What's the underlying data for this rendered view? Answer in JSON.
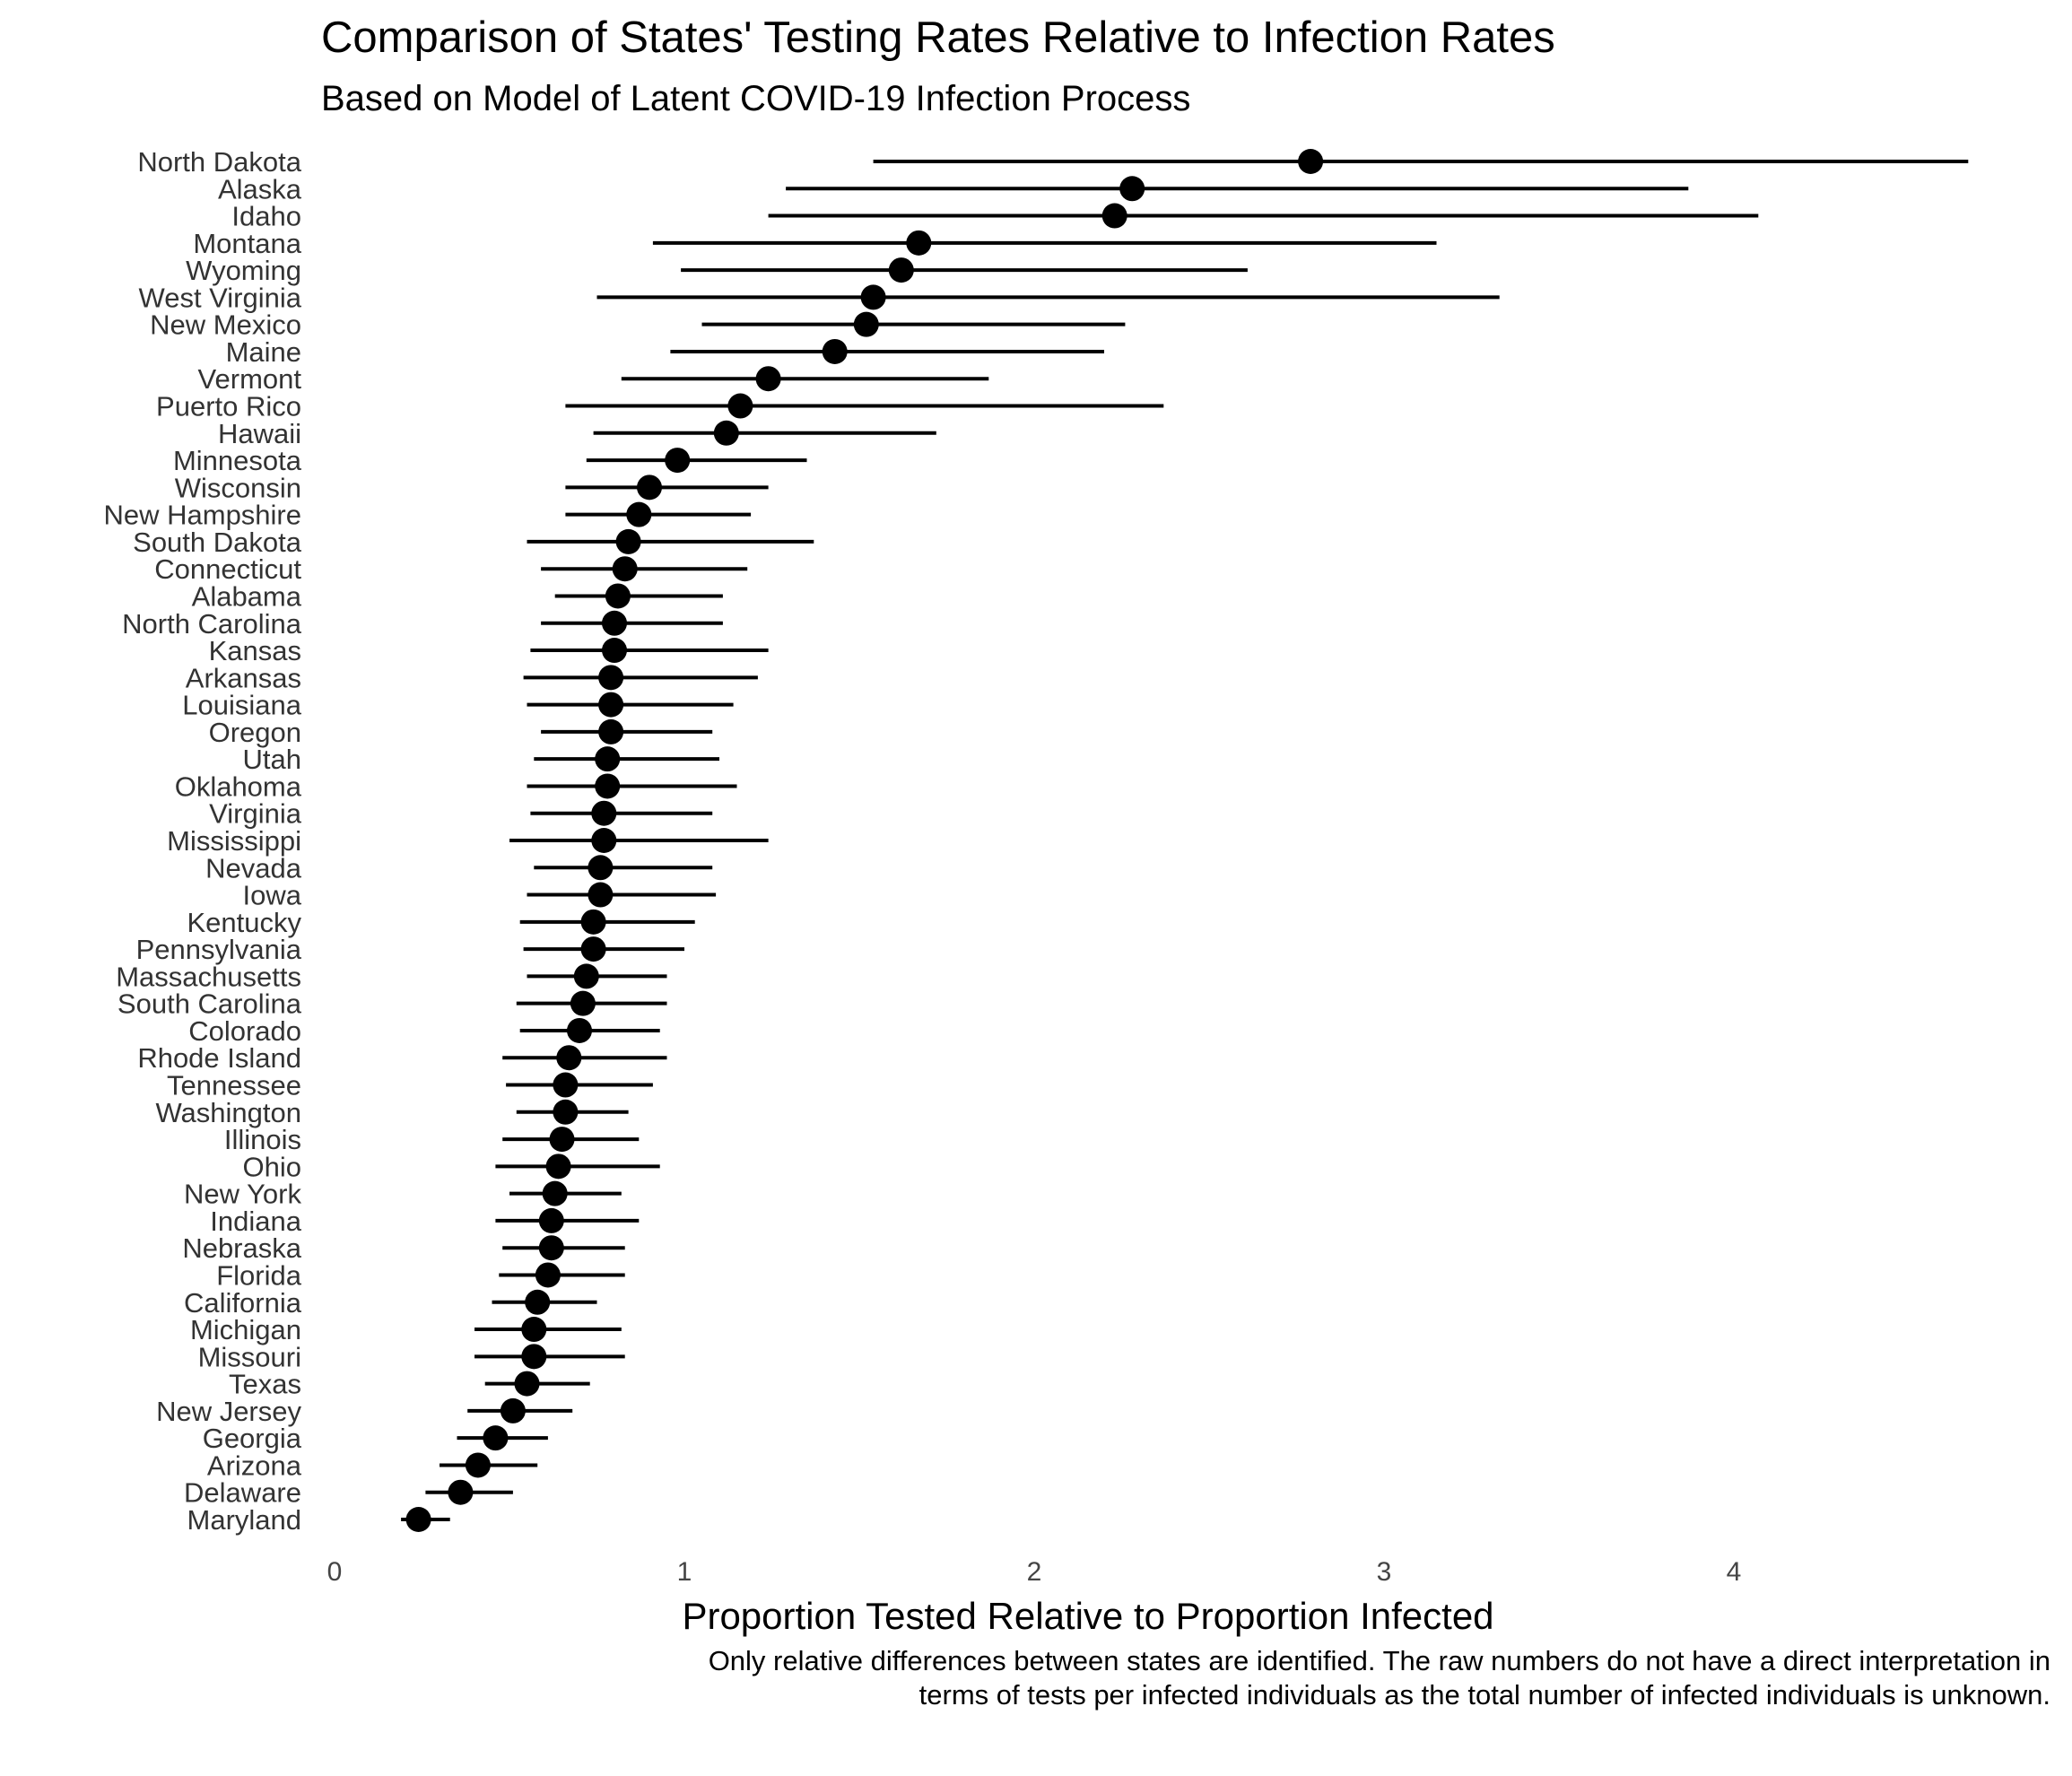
{
  "chart_data": {
    "type": "scatter",
    "subtype": "point-range",
    "title": "Comparison of States' Testing Rates Relative to Infection Rates",
    "subtitle": "Based on Model of Latent COVID-19 Infection Process",
    "xlabel": "Proportion Tested Relative to Proportion Infected",
    "ylabel": "",
    "xlim": [
      0,
      4.72
    ],
    "xticks": [
      0,
      1,
      2,
      3,
      4
    ],
    "grid": false,
    "caption": "Only relative differences between states are identified. The raw numbers do not have a direct interpretation in terms of tests per infected individuals as the total number of infected individuals is unknown.",
    "states": [
      {
        "state": "North Dakota",
        "estimate": 2.79,
        "low": 1.54,
        "high": 4.67
      },
      {
        "state": "Alaska",
        "estimate": 2.28,
        "low": 1.29,
        "high": 3.87
      },
      {
        "state": "Idaho",
        "estimate": 2.23,
        "low": 1.24,
        "high": 4.07
      },
      {
        "state": "Montana",
        "estimate": 1.67,
        "low": 0.91,
        "high": 3.15
      },
      {
        "state": "Wyoming",
        "estimate": 1.62,
        "low": 0.99,
        "high": 2.61
      },
      {
        "state": "West Virginia",
        "estimate": 1.54,
        "low": 0.75,
        "high": 3.33
      },
      {
        "state": "New Mexico",
        "estimate": 1.52,
        "low": 1.05,
        "high": 2.26
      },
      {
        "state": "Maine",
        "estimate": 1.43,
        "low": 0.96,
        "high": 2.2
      },
      {
        "state": "Vermont",
        "estimate": 1.24,
        "low": 0.82,
        "high": 1.87
      },
      {
        "state": "Puerto Rico",
        "estimate": 1.16,
        "low": 0.66,
        "high": 2.37
      },
      {
        "state": "Hawaii",
        "estimate": 1.12,
        "low": 0.74,
        "high": 1.72
      },
      {
        "state": "Minnesota",
        "estimate": 0.98,
        "low": 0.72,
        "high": 1.35
      },
      {
        "state": "Wisconsin",
        "estimate": 0.9,
        "low": 0.66,
        "high": 1.24
      },
      {
        "state": "New Hampshire",
        "estimate": 0.87,
        "low": 0.66,
        "high": 1.19
      },
      {
        "state": "South Dakota",
        "estimate": 0.84,
        "low": 0.55,
        "high": 1.37
      },
      {
        "state": "Connecticut",
        "estimate": 0.83,
        "low": 0.59,
        "high": 1.18
      },
      {
        "state": "Alabama",
        "estimate": 0.81,
        "low": 0.63,
        "high": 1.11
      },
      {
        "state": "North Carolina",
        "estimate": 0.8,
        "low": 0.59,
        "high": 1.11
      },
      {
        "state": "Kansas",
        "estimate": 0.8,
        "low": 0.56,
        "high": 1.24
      },
      {
        "state": "Arkansas",
        "estimate": 0.79,
        "low": 0.54,
        "high": 1.21
      },
      {
        "state": "Louisiana",
        "estimate": 0.79,
        "low": 0.55,
        "high": 1.14
      },
      {
        "state": "Oregon",
        "estimate": 0.79,
        "low": 0.59,
        "high": 1.08
      },
      {
        "state": "Utah",
        "estimate": 0.78,
        "low": 0.57,
        "high": 1.1
      },
      {
        "state": "Oklahoma",
        "estimate": 0.78,
        "low": 0.55,
        "high": 1.15
      },
      {
        "state": "Virginia",
        "estimate": 0.77,
        "low": 0.56,
        "high": 1.08
      },
      {
        "state": "Mississippi",
        "estimate": 0.77,
        "low": 0.5,
        "high": 1.24
      },
      {
        "state": "Nevada",
        "estimate": 0.76,
        "low": 0.57,
        "high": 1.08
      },
      {
        "state": "Iowa",
        "estimate": 0.76,
        "low": 0.55,
        "high": 1.09
      },
      {
        "state": "Kentucky",
        "estimate": 0.74,
        "low": 0.53,
        "high": 1.03
      },
      {
        "state": "Pennsylvania",
        "estimate": 0.74,
        "low": 0.54,
        "high": 1.0
      },
      {
        "state": "Massachusetts",
        "estimate": 0.72,
        "low": 0.55,
        "high": 0.95
      },
      {
        "state": "South Carolina",
        "estimate": 0.71,
        "low": 0.52,
        "high": 0.95
      },
      {
        "state": "Colorado",
        "estimate": 0.7,
        "low": 0.53,
        "high": 0.93
      },
      {
        "state": "Rhode Island",
        "estimate": 0.67,
        "low": 0.48,
        "high": 0.95
      },
      {
        "state": "Tennessee",
        "estimate": 0.66,
        "low": 0.49,
        "high": 0.91
      },
      {
        "state": "Washington",
        "estimate": 0.66,
        "low": 0.52,
        "high": 0.84
      },
      {
        "state": "Illinois",
        "estimate": 0.65,
        "low": 0.48,
        "high": 0.87
      },
      {
        "state": "Ohio",
        "estimate": 0.64,
        "low": 0.46,
        "high": 0.93
      },
      {
        "state": "New York",
        "estimate": 0.63,
        "low": 0.5,
        "high": 0.82
      },
      {
        "state": "Indiana",
        "estimate": 0.62,
        "low": 0.46,
        "high": 0.87
      },
      {
        "state": "Nebraska",
        "estimate": 0.62,
        "low": 0.48,
        "high": 0.83
      },
      {
        "state": "Florida",
        "estimate": 0.61,
        "low": 0.47,
        "high": 0.83
      },
      {
        "state": "California",
        "estimate": 0.58,
        "low": 0.45,
        "high": 0.75
      },
      {
        "state": "Michigan",
        "estimate": 0.57,
        "low": 0.4,
        "high": 0.82
      },
      {
        "state": "Missouri",
        "estimate": 0.57,
        "low": 0.4,
        "high": 0.83
      },
      {
        "state": "Texas",
        "estimate": 0.55,
        "low": 0.43,
        "high": 0.73
      },
      {
        "state": "New Jersey",
        "estimate": 0.51,
        "low": 0.38,
        "high": 0.68
      },
      {
        "state": "Georgia",
        "estimate": 0.46,
        "low": 0.35,
        "high": 0.61
      },
      {
        "state": "Arizona",
        "estimate": 0.41,
        "low": 0.3,
        "high": 0.58
      },
      {
        "state": "Delaware",
        "estimate": 0.36,
        "low": 0.26,
        "high": 0.51
      },
      {
        "state": "Maryland",
        "estimate": 0.24,
        "low": 0.19,
        "high": 0.33
      }
    ]
  }
}
